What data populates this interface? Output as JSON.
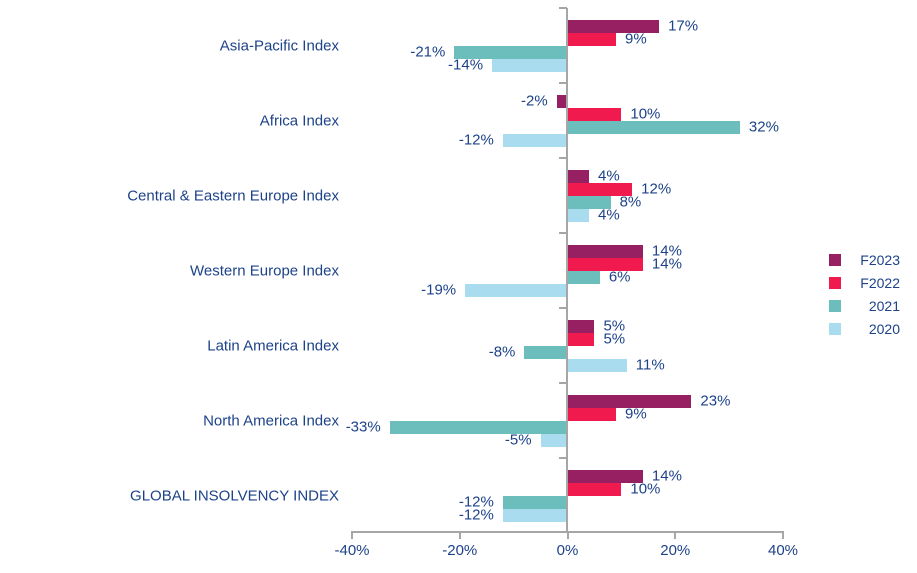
{
  "chart_data": {
    "type": "bar",
    "orientation": "horizontal",
    "title": "",
    "categories": [
      "Asia-Pacific Index",
      "Africa Index",
      "Central & Eastern Europe Index",
      "Western Europe Index",
      "Latin America Index",
      "North America Index",
      "GLOBAL INSOLVENCY INDEX"
    ],
    "series": [
      {
        "name": "F2023",
        "color": "#962062",
        "values": [
          17,
          -2,
          4,
          14,
          5,
          23,
          14
        ]
      },
      {
        "name": "F2022",
        "color": "#f01a4e",
        "values": [
          9,
          10,
          12,
          14,
          5,
          9,
          10
        ]
      },
      {
        "name": "2021",
        "color": "#6bbebb",
        "values": [
          -21,
          32,
          8,
          6,
          -8,
          -33,
          -12
        ]
      },
      {
        "name": "2020",
        "color": "#a9dcee",
        "values": [
          -14,
          -12,
          4,
          -19,
          11,
          -5,
          -12
        ]
      }
    ],
    "value_suffix": "%",
    "xlim": [
      -40,
      40
    ],
    "x_ticks": [
      "-40%",
      "-20%",
      "0%",
      "20%",
      "40%"
    ],
    "x_tick_values": [
      -40,
      -20,
      0,
      20,
      40
    ],
    "legend_position": "right",
    "grid": false
  },
  "colors": {
    "text": "#1d4289",
    "axis": "#a6a6a6",
    "background": "#ffffff"
  }
}
